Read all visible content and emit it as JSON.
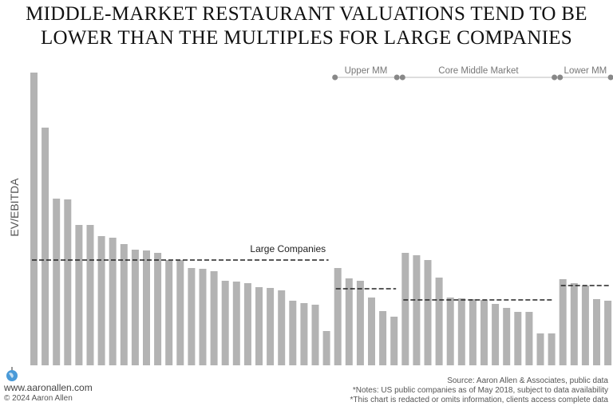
{
  "title_lines": [
    "MIDDLE-MARKET RESTAURANT VALUATIONS TEND TO BE",
    "LOWER THAN THE MULTIPLES FOR LARGE COMPANIES"
  ],
  "chart_data": {
    "type": "bar",
    "ylabel": "EV/EBITDA",
    "ylim": [
      0,
      37
    ],
    "grid": false,
    "bar_color": "#b3b3b3",
    "average_line_color": "#222222",
    "groups": [
      {
        "name": "Large Companies",
        "label_shown": "Large Companies",
        "average": 13.2,
        "values": [
          36.7,
          29.8,
          20.9,
          20.8,
          17.6,
          17.6,
          16.2,
          16.0,
          15.2,
          14.5,
          14.4,
          14.1,
          13.2,
          13.2,
          12.2,
          12.1,
          11.8,
          10.6,
          10.5,
          10.3,
          9.8,
          9.7,
          9.4,
          8.1,
          7.8,
          7.6,
          4.3
        ]
      },
      {
        "name": "Upper MM",
        "label_shown": "Upper MM",
        "average": 9.6,
        "values": [
          12.2,
          10.9,
          10.6,
          8.5,
          6.8,
          6.1
        ]
      },
      {
        "name": "Core Middle Market",
        "label_shown": "Core Middle Market",
        "average": 8.2,
        "values": [
          14.1,
          13.8,
          13.2,
          11.0,
          8.5,
          8.4,
          8.3,
          8.2,
          7.7,
          7.2,
          6.7,
          6.7,
          4.0,
          4.0
        ]
      },
      {
        "name": "Lower MM",
        "label_shown": "Lower MM",
        "average": 10.0,
        "values": [
          10.8,
          10.3,
          10.0,
          8.3,
          8.1
        ]
      }
    ]
  },
  "footer": {
    "website": "www.aaronallen.com",
    "copyright": "© 2024 Aaron Allen",
    "source": "Source: Aaron Allen & Associates, public data",
    "notes": "*Notes: US public companies as of May 2018, subject to data availability",
    "disclaimer": "*This chart is redacted or omits information, clients access complete data"
  }
}
